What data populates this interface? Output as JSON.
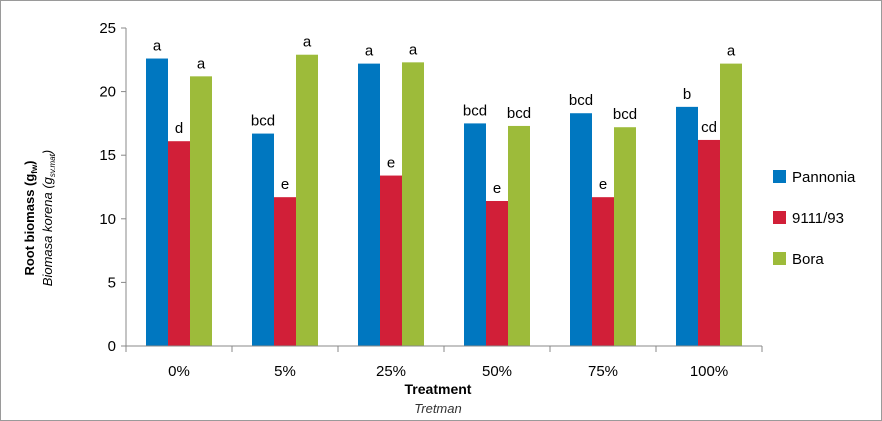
{
  "chart_data": {
    "type": "bar",
    "categories": [
      "0%",
      "5%",
      "25%",
      "50%",
      "75%",
      "100%"
    ],
    "series": [
      {
        "name": "Pannonia",
        "color": "#0077c0",
        "values": [
          22.6,
          16.7,
          22.2,
          17.5,
          18.3,
          18.8
        ],
        "labels": [
          "a",
          "bcd",
          "a",
          "bcd",
          "bcd",
          "b"
        ]
      },
      {
        "name": "9111/93",
        "color": "#d11f38",
        "values": [
          16.1,
          11.7,
          13.4,
          11.4,
          11.7,
          16.2
        ],
        "labels": [
          "d",
          "e",
          "e",
          "e",
          "e",
          "cd"
        ]
      },
      {
        "name": "Bora",
        "color": "#9dbb3a",
        "values": [
          21.2,
          22.9,
          22.3,
          17.3,
          17.2,
          22.2
        ],
        "labels": [
          "a",
          "a",
          "a",
          "bcd",
          "bcd",
          "a"
        ]
      }
    ],
    "xlabel": "Treatment",
    "xlabel_sub": "Tretman",
    "ylabel_main": "Root biomass (g",
    "ylabel_main_sub": "fw",
    "ylabel_main_end": ")",
    "ylabel_alt": "Biomasa korena (g",
    "ylabel_alt_sub": "sv.mat",
    "ylabel_alt_end": ")",
    "ylim": [
      0,
      25
    ],
    "yticks": [
      "0",
      "5",
      "10",
      "15",
      "20",
      "25"
    ],
    "grid": false,
    "legend_position": "right"
  }
}
